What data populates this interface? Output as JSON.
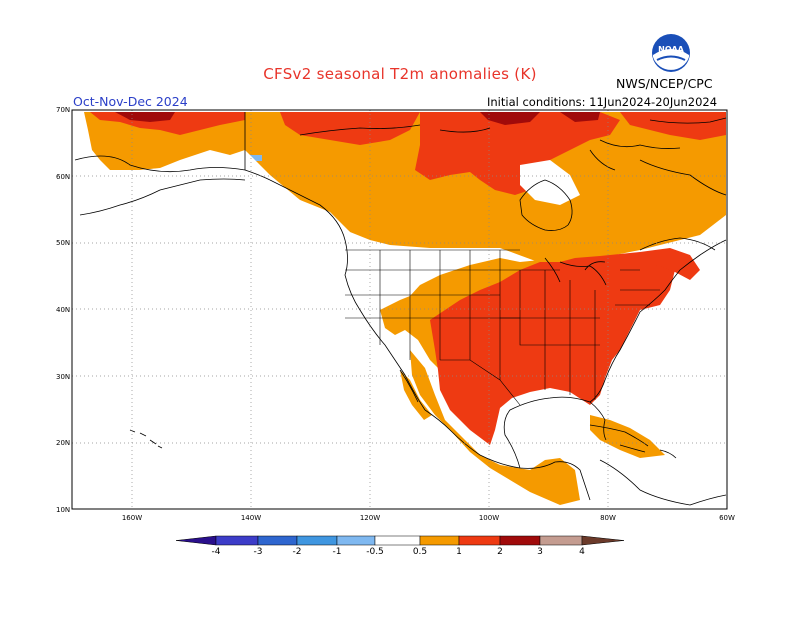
{
  "header": {
    "title": "CFSv2 seasonal T2m anomalies (K)",
    "season": "Oct-Nov-Dec 2024",
    "initial_conditions": "Initial conditions: 11Jun2024-20Jun2024",
    "agency": "NWS/NCEP/CPC",
    "logo_text": "NOAA"
  },
  "axes": {
    "lat_labels": [
      "70N",
      "60N",
      "50N",
      "40N",
      "30N",
      "20N",
      "10N"
    ],
    "lon_labels": [
      "160W",
      "140W",
      "120W",
      "100W",
      "80W",
      "60W"
    ],
    "grid": "dotted"
  },
  "colorbar": {
    "ticks": [
      "-4",
      "-3",
      "-2",
      "-1",
      "-0.5",
      "0.5",
      "1",
      "2",
      "3",
      "4"
    ],
    "colors": {
      "lt_-4": "#2a0f8c",
      "-4_-3": "#3c3cc8",
      "-3_-2": "#2e66cf",
      "-2_-1": "#3f96e0",
      "-1_-0.5": "#7fb8f0",
      "-0.5_0.5": "#ffffff",
      "0.5_1": "#f59a00",
      "1_2": "#ee3a12",
      "2_3": "#a00a0a",
      "3_4": "#c49c90",
      "gt_4": "#6b3a2a"
    }
  },
  "anomaly_summary": [
    {
      "region": "Eastern and central United States",
      "category": "1_2"
    },
    {
      "region": "Northern Mexico and Texas",
      "category": "1_2"
    },
    {
      "region": "Canadian Arctic islands",
      "category": "1_2"
    },
    {
      "region": "Northwest Alaska / far north",
      "category": "2_3"
    },
    {
      "region": "Canada, western US interior, Mexico, Caribbean",
      "category": "0.5_1"
    },
    {
      "region": "Southern Alaska / Yukon",
      "category": "-1_-0.5"
    }
  ]
}
